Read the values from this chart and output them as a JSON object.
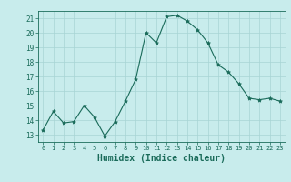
{
  "xlabel": "Humidex (Indice chaleur)",
  "x": [
    0,
    1,
    2,
    3,
    4,
    5,
    6,
    7,
    8,
    9,
    10,
    11,
    12,
    13,
    14,
    15,
    16,
    17,
    18,
    19,
    20,
    21,
    22,
    23
  ],
  "y": [
    13.3,
    14.6,
    13.8,
    13.9,
    15.0,
    14.2,
    12.9,
    13.9,
    15.3,
    16.8,
    20.0,
    19.3,
    21.1,
    21.2,
    20.8,
    20.2,
    19.3,
    17.8,
    17.3,
    16.5,
    15.5,
    15.4,
    15.5,
    15.3
  ],
  "line_color": "#1a6b5a",
  "marker": "*",
  "marker_size": 3,
  "bg_color": "#c8ecec",
  "grid_color": "#a8d4d4",
  "ylim": [
    12.5,
    21.5
  ],
  "yticks": [
    13,
    14,
    15,
    16,
    17,
    18,
    19,
    20,
    21
  ],
  "xlim": [
    -0.5,
    23.5
  ],
  "xticks": [
    0,
    1,
    2,
    3,
    4,
    5,
    6,
    7,
    8,
    9,
    10,
    11,
    12,
    13,
    14,
    15,
    16,
    17,
    18,
    19,
    20,
    21,
    22,
    23
  ]
}
